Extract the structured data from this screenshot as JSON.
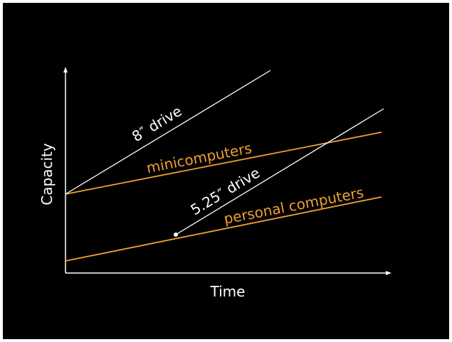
{
  "axes": {
    "x_label": "Time",
    "y_label": "Capacity"
  },
  "series": [
    {
      "label": "8″ drive",
      "color": "#ffffff"
    },
    {
      "label": "minicomputers",
      "color": "#f0a030"
    },
    {
      "label": "5.25″ drive",
      "color": "#ffffff"
    },
    {
      "label": "personal computers",
      "color": "#f0a030"
    }
  ],
  "colors": {
    "background": "#000000",
    "axis": "#ffffff",
    "drive_line": "#ffffff",
    "market_line": "#f0a030"
  }
}
